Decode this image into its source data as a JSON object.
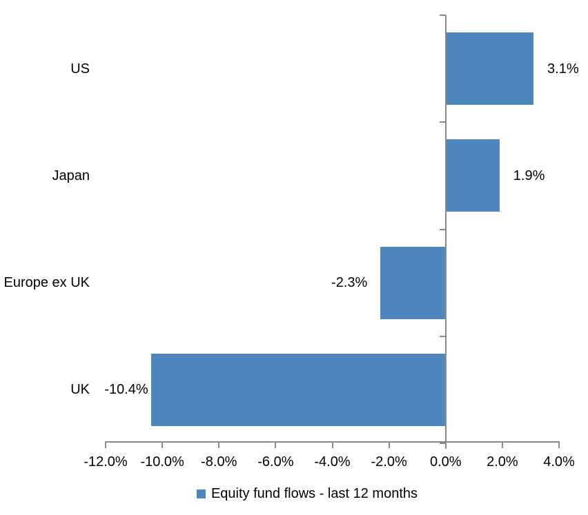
{
  "chart_data": {
    "type": "bar",
    "orientation": "horizontal",
    "title": "",
    "categories": [
      "US",
      "Japan",
      "Europe ex UK",
      "UK"
    ],
    "series": [
      {
        "name": "Equity fund flows - last 12 months",
        "values": [
          3.1,
          1.9,
          -2.3,
          -10.4
        ],
        "value_labels": [
          "3.1%",
          "1.9%",
          "-2.3%",
          "-10.4%"
        ],
        "color": "#4E86BE"
      }
    ],
    "xlabel": "",
    "ylabel": "",
    "xlim": [
      -12,
      4
    ],
    "x_ticks": [
      -12,
      -10,
      -8,
      -6,
      -4,
      -2,
      0,
      2,
      4
    ],
    "x_tick_labels": [
      "-12.0%",
      "-10.0%",
      "-8.0%",
      "-6.0%",
      "-4.0%",
      "-2.0%",
      "0.0%",
      "2.0%",
      "4.0%"
    ],
    "grid": false,
    "axis_color": "#898989",
    "text_color": "#000000",
    "legend_position": "bottom"
  },
  "legend": {
    "label": "Equity fund flows - last 12 months",
    "marker_color": "#4E86BE"
  }
}
